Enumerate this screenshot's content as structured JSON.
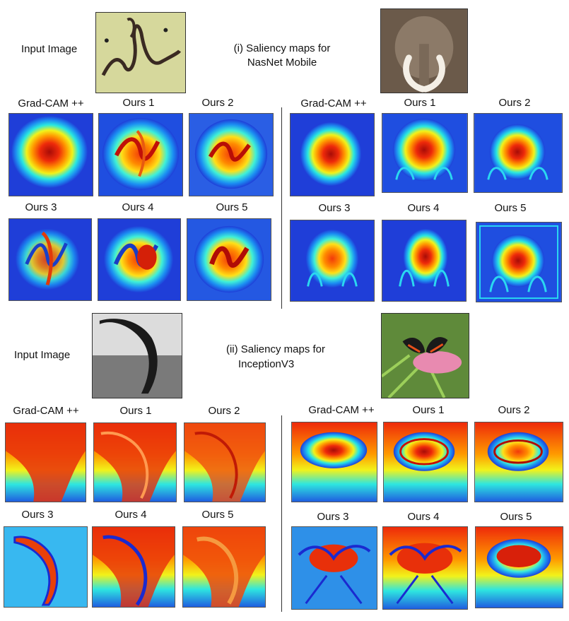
{
  "section1": {
    "input_label": "Input Image",
    "caption_line1": "(i) Saliency maps for",
    "caption_line2": "NasNet Mobile",
    "left_labels": [
      "Grad-CAM ++",
      "Ours  1",
      "Ours  2",
      "Ours  3",
      "Ours  4",
      "Ours  5"
    ],
    "right_labels": [
      "Grad-CAM ++",
      "Ours  1",
      "Ours  2",
      "Ours  3",
      "Ours  4",
      "Ours  5"
    ]
  },
  "section2": {
    "input_label": "Input Image",
    "caption_line1": "(ii) Saliency maps for",
    "caption_line2": "InceptionV3",
    "left_labels": [
      "Grad-CAM ++",
      "Ours  1",
      "Ours  2",
      "Ours  3",
      "Ours  4",
      "Ours  5"
    ],
    "right_labels": [
      "Grad-CAM ++",
      "Ours  1",
      "Ours  2",
      "Ours  3",
      "Ours  4",
      "Ours  5"
    ]
  },
  "colors": {
    "jet_dark_blue": "#1a2fd6",
    "jet_cyan": "#00e5ff",
    "jet_yellow": "#ffe600",
    "jet_red": "#e8200a",
    "jet_dark_red": "#8a0a05"
  }
}
